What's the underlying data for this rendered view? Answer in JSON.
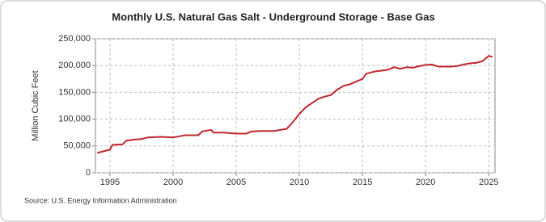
{
  "chart_data": {
    "type": "line",
    "title": "Monthly U.S. Natural Gas Salt - Underground Storage - Base Gas",
    "y_label": "Million Cubic Feet",
    "source": "Source: U.S. Energy Information Administration",
    "color": "#c0272d",
    "grid": true,
    "xlim": [
      1993.85,
      2025.5
    ],
    "xticks": [
      1995,
      2000,
      2005,
      2010,
      2015,
      2020,
      2025
    ],
    "ylim": [
      0,
      250000
    ],
    "yticks": [
      0,
      {
        "value": 50000,
        "label": "50,000"
      },
      {
        "value": 100000,
        "label": "100,000"
      },
      {
        "value": 150000,
        "label": "150,000"
      },
      {
        "value": 200000,
        "label": "200,000"
      },
      {
        "value": 250000,
        "label": "250,000"
      }
    ],
    "x": [
      1994.0,
      1994.5,
      1995.0,
      1995.2,
      1996.0,
      1996.3,
      1997.0,
      1997.5,
      1998.0,
      1999.0,
      2000.0,
      2000.5,
      2001.0,
      2002.0,
      2002.3,
      2003.0,
      2003.2,
      2004.0,
      2005.0,
      2005.8,
      2006.2,
      2007.0,
      2008.0,
      2008.5,
      2009.0,
      2009.5,
      2010.0,
      2010.5,
      2011.0,
      2011.5,
      2012.0,
      2012.5,
      2013.0,
      2013.5,
      2014.0,
      2014.5,
      2015.0,
      2015.3,
      2016.0,
      2017.0,
      2017.5,
      2018.0,
      2018.5,
      2019.0,
      2019.5,
      2020.0,
      2020.5,
      2021.0,
      2021.5,
      2022.0,
      2022.5,
      2023.0,
      2023.5,
      2024.0,
      2024.5,
      2025.0,
      2025.3
    ],
    "values": [
      37000,
      40000,
      43000,
      52000,
      53000,
      60000,
      62000,
      63000,
      66000,
      67000,
      66000,
      68000,
      70000,
      70000,
      77000,
      80000,
      75000,
      75000,
      73000,
      73000,
      77000,
      78000,
      78000,
      80000,
      82000,
      95000,
      110000,
      122000,
      130000,
      138000,
      142000,
      145000,
      155000,
      162000,
      165000,
      170000,
      175000,
      185000,
      189000,
      192000,
      197000,
      194000,
      197000,
      196000,
      199000,
      201000,
      202000,
      198000,
      198000,
      198000,
      199000,
      202000,
      204000,
      205000,
      208000,
      218000,
      216000
    ]
  }
}
